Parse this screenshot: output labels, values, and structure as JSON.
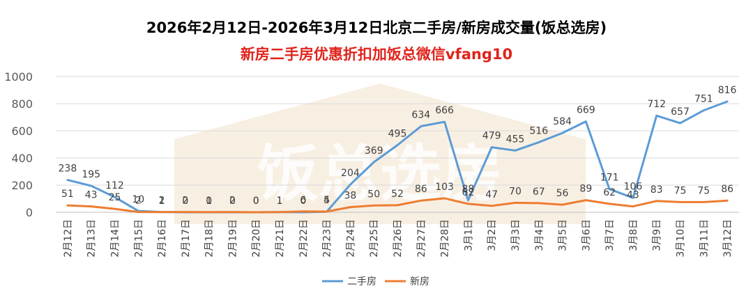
{
  "title": "2026年2月12日-2026年3月12日北京二手房/新房成交量(饭总选房)",
  "subtitle": "新房二手房优惠折扣加饭总微信vfang10",
  "watermark": "饭总选房",
  "colors": {
    "second_hand": "#5b9bd5",
    "new_home": "#ed7d31",
    "subtitle": "#e0231b"
  },
  "chart_data": {
    "type": "line",
    "title": "2026年2月12日-2026年3月12日北京二手房/新房成交量(饭总选房)",
    "categories": [
      "2月12日",
      "2月13日",
      "2月14日",
      "2月15日",
      "2月16日",
      "2月17日",
      "2月18日",
      "2月19日",
      "2月20日",
      "2月21日",
      "2月22日",
      "2月23日",
      "2月24日",
      "2月25日",
      "2月26日",
      "2月27日",
      "2月28日",
      "3月1日",
      "3月2日",
      "3月3日",
      "3月4日",
      "3月5日",
      "3月6日",
      "3月7日",
      "3月8日",
      "3月9日",
      "3月10日",
      "3月11日",
      "3月12日"
    ],
    "series": [
      {
        "name": "二手房",
        "color": "#5b9bd5",
        "values": [
          238,
          195,
          112,
          10,
          2,
          0,
          0,
          0,
          0,
          1,
          0,
          4,
          204,
          369,
          495,
          634,
          666,
          88,
          479,
          455,
          516,
          584,
          669,
          171,
          106,
          712,
          657,
          751,
          816
        ]
      },
      {
        "name": "新房",
        "color": "#ed7d31",
        "values": [
          51,
          43,
          25,
          2,
          1,
          2,
          1,
          2,
          0,
          1,
          6,
          5,
          38,
          50,
          52,
          86,
          103,
          62,
          47,
          70,
          67,
          56,
          89,
          62,
          43,
          83,
          75,
          75,
          86
        ]
      }
    ],
    "ylim": [
      0,
      1000
    ],
    "yticks": [
      0,
      200,
      400,
      600,
      800,
      1000
    ],
    "grid": true,
    "legend": "bottom"
  }
}
